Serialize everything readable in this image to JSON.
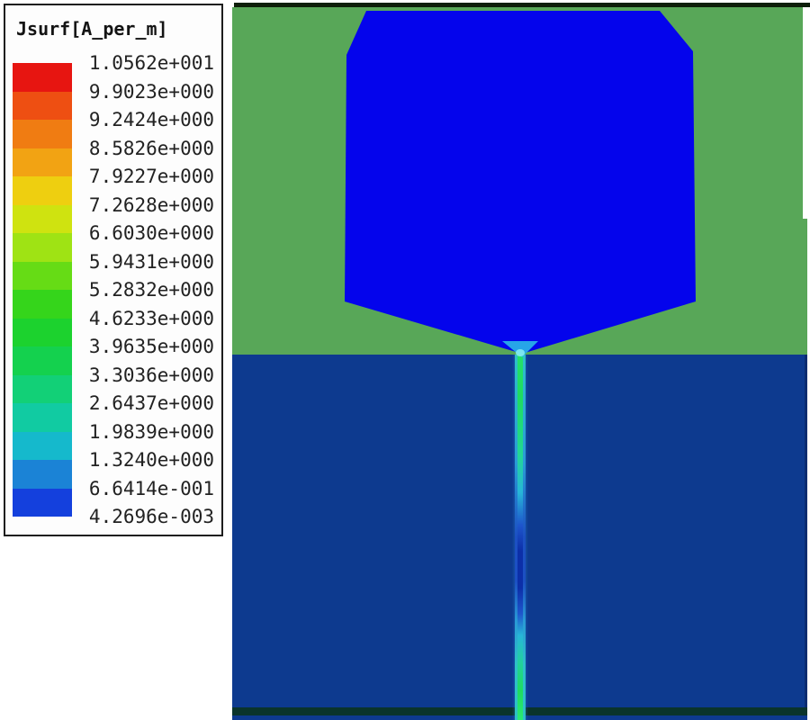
{
  "legend": {
    "title": "Jsurf[A_per_m]",
    "scale_values": [
      "1.0562e+001",
      "9.9023e+000",
      "9.2424e+000",
      "8.5826e+000",
      "7.9227e+000",
      "7.2628e+000",
      "6.6030e+000",
      "5.9431e+000",
      "5.2832e+000",
      "4.6233e+000",
      "3.9635e+000",
      "3.3036e+000",
      "2.6437e+000",
      "1.9839e+000",
      "1.3240e+000",
      "6.6414e-001",
      "4.2696e-003"
    ],
    "band_colors": [
      "#e71511",
      "#ee4f12",
      "#f07c12",
      "#f2a313",
      "#eecf10",
      "#cfe310",
      "#9fe314",
      "#66dc15",
      "#35d51b",
      "#1cd22e",
      "#14d14e",
      "#12d077",
      "#11cba2",
      "#15b9cc",
      "#1b83d6",
      "#1440dd"
    ],
    "border_color": "#1e1e1e",
    "text_color": "#222222"
  },
  "plot": {
    "colors": {
      "substrate_green": "#58a758",
      "patch_blue": "#0404ec",
      "ground_navy": "#0d3a8f",
      "ground_edge_navy": "#0a2c70",
      "top_border": "#0e1f0a",
      "bottom_border": "#0a342b",
      "feed_tip_cyan": "#2bb7e8",
      "tip_glow": "#8ceef2"
    },
    "feed": {
      "halo_color": "#2e86d4",
      "sheath_stops": [
        [
          0,
          "#2fc6c8"
        ],
        [
          30,
          "#2a9ed8"
        ],
        [
          50,
          "#1c4fc4"
        ],
        [
          62,
          "#1c4fc4"
        ],
        [
          73,
          "#2a9ed8"
        ],
        [
          85,
          "#2fc6c8"
        ],
        [
          100,
          "#2fc6c8"
        ]
      ],
      "core_stops": [
        [
          0,
          "#25e06c"
        ],
        [
          12,
          "#1fdc60"
        ],
        [
          28,
          "#22d796"
        ],
        [
          38,
          "#27b6d8"
        ],
        [
          47,
          "#1e55cc"
        ],
        [
          54,
          "#0c2fa8"
        ],
        [
          64,
          "#0c2fa8"
        ],
        [
          71,
          "#1e55cc"
        ],
        [
          77,
          "#27b6d8"
        ],
        [
          84,
          "#23d0a0"
        ],
        [
          92,
          "#1fdc60"
        ],
        [
          100,
          "#2ae874"
        ]
      ]
    }
  },
  "chart_data": {
    "type": "heatmap",
    "title": "Jsurf[A_per_m]",
    "quantity": "Jsurf (surface current density)",
    "units": "A_per_m",
    "colormap": "rainbow (red=max, blue=min), 16 discrete bands",
    "legend_position": "left",
    "scale_max": 10.562,
    "scale_min": 0.0042696,
    "scale_levels": [
      10.562,
      9.9023,
      9.2424,
      8.5826,
      7.9227,
      7.2628,
      6.603,
      5.9431,
      5.2832,
      4.6233,
      3.9635,
      3.3036,
      2.6437,
      1.9839,
      1.324,
      0.66414,
      0.0042696
    ],
    "scene": {
      "description": "Top view of a microstrip-fed patch antenna surface-current simulation",
      "regions": [
        {
          "name": "substrate-background",
          "appearance": "flat green, upper ~half of view",
          "jsurf_A_per_m": null
        },
        {
          "name": "radiating-patch",
          "appearance": "uniform deep blue pentagon with chamfered top corners tapering to the feed point",
          "jsurf_A_per_m": "minimum band ~0.004-0.66"
        },
        {
          "name": "ground-plane",
          "appearance": "dark navy, lower ~half of view",
          "jsurf_A_per_m": "minimum band ~0.004-0.66"
        },
        {
          "name": "feed-line",
          "appearance": "thin vertical strip with green core and cyan edges; blue current null about 60% down its length",
          "jsurf_A_per_m": "standing-wave pattern, ~1.3 to ~5.3"
        }
      ]
    }
  }
}
